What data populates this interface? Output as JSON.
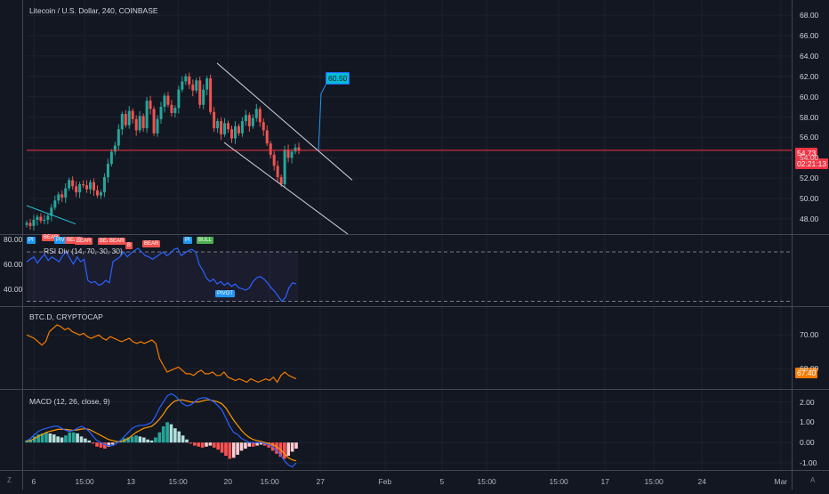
{
  "colors": {
    "background": "#131722",
    "grid": "#1e2230",
    "up": "#26a69a",
    "down": "#ef5350",
    "price_line": "#f23645",
    "rsi": "#2962ff",
    "btcd": "#f57c00",
    "macd": "#2962ff",
    "signal": "#ff9800",
    "channel": "#d1d4dc",
    "target": "#2196f3"
  },
  "main": {
    "legend": "Litecoin / U.S. Dollar, 240, COINBASE",
    "price_tag": "54.73",
    "countdown_tag": "02:21:13",
    "target_label": "60.50",
    "y_ticks": [
      "68.00",
      "66.00",
      "64.00",
      "62.00",
      "60.00",
      "58.00",
      "56.00",
      "54.00",
      "52.00",
      "50.00",
      "48.00"
    ]
  },
  "rsi": {
    "legend": "RSI Div (14, 70, 30, 30)",
    "y_ticks": [
      "80.00",
      "60.00",
      "40.00"
    ],
    "overbought": 70,
    "oversold": 30,
    "badges": [
      {
        "text": "PI",
        "color": "#2196f3"
      },
      {
        "text": "BEAR",
        "color": "#ef5350"
      },
      {
        "text": "PIVO",
        "color": "#2196f3"
      },
      {
        "text": "BEAR",
        "color": "#ef5350"
      },
      {
        "text": "BEAR",
        "color": "#ef5350"
      },
      {
        "text": "BEAR",
        "color": "#ef5350"
      },
      {
        "text": "BEAR",
        "color": "#ef5350"
      },
      {
        "text": "B",
        "color": "#ef5350"
      },
      {
        "text": "BEAR",
        "color": "#ef5350"
      },
      {
        "text": "PI",
        "color": "#2196f3"
      },
      {
        "text": "BULL",
        "color": "#4caf50"
      },
      {
        "text": "PIVOT",
        "color": "#2196f3"
      }
    ]
  },
  "btcd": {
    "legend": "BTC.D, CRYPTOCAP",
    "y_ticks": [
      "70.00",
      "68.00"
    ],
    "value_tag": "67.40"
  },
  "macd": {
    "legend": "MACD (12, 26, close, 9)",
    "y_ticks": [
      "2.00",
      "1.00",
      "0.00",
      "-1.00"
    ]
  },
  "x_axis": {
    "ticks": [
      "6",
      "15:00",
      "13",
      "15:00",
      "20",
      "15:00",
      "27",
      "Feb",
      "5",
      "15:00",
      "15:00",
      "17",
      "15:00",
      "24",
      "Mar"
    ]
  },
  "corners": {
    "left": "Z",
    "right": "A"
  },
  "chart_data": [
    {
      "type": "candlestick",
      "title": "Litecoin / U.S. Dollar, 240, COINBASE",
      "ylim": [
        46.5,
        69.5
      ],
      "close": [
        47.6,
        47.3,
        47.9,
        48.2,
        47.8,
        47.9,
        48.3,
        49.1,
        49.8,
        50.4,
        50.1,
        51.0,
        51.8,
        51.2,
        50.6,
        51.4,
        51.3,
        50.9,
        51.6,
        50.8,
        50.3,
        50.6,
        52.1,
        53.4,
        54.6,
        55.2,
        56.8,
        58.3,
        57.2,
        58.6,
        57.8,
        56.7,
        58.1,
        56.9,
        59.6,
        58.8,
        56.4,
        57.8,
        59.0,
        60.1,
        59.2,
        58.4,
        58.9,
        60.7,
        61.5,
        62.0,
        61.2,
        60.6,
        61.6,
        59.2,
        60.7,
        61.8,
        58.5,
        56.9,
        57.6,
        56.3,
        57.4,
        56.8,
        55.9,
        57.1,
        56.4,
        57.6,
        58.2,
        57.1,
        57.9,
        58.8,
        57.5,
        56.7,
        55.4,
        54.3,
        53.2,
        52.1,
        51.4,
        54.8,
        54.0,
        54.6,
        55.0,
        54.7
      ],
      "last": 54.73,
      "horizontal_line": 54.73,
      "target": 60.5
    },
    {
      "type": "line",
      "title": "RSI Div (14, 70, 30, 30)",
      "ylim": [
        26,
        83
      ],
      "levels": [
        70,
        30
      ],
      "values": [
        62,
        64,
        66,
        61,
        65,
        68,
        63,
        66,
        64,
        62,
        67,
        70,
        65,
        60,
        66,
        62,
        64,
        47,
        45,
        46,
        43,
        44,
        47,
        45,
        62,
        64,
        66,
        70,
        66,
        69,
        71,
        73,
        70,
        67,
        66,
        64,
        66,
        68,
        70,
        67,
        69,
        72,
        73,
        67,
        69,
        71,
        72,
        70,
        60,
        55,
        49,
        46,
        48,
        44,
        46,
        43,
        45,
        42,
        44,
        41,
        40,
        39,
        41,
        46,
        49,
        50,
        48,
        45,
        41,
        38,
        34,
        30,
        33,
        41,
        45,
        44
      ]
    },
    {
      "type": "line",
      "title": "BTC.D, CRYPTOCAP",
      "ylim": [
        66.8,
        71.6
      ],
      "values": [
        70.0,
        69.9,
        69.8,
        69.6,
        69.4,
        69.6,
        70.2,
        70.4,
        70.6,
        70.5,
        70.3,
        70.4,
        70.2,
        70.1,
        70.0,
        70.1,
        69.9,
        69.8,
        69.9,
        70.0,
        69.8,
        69.7,
        69.9,
        69.8,
        69.7,
        69.6,
        69.7,
        69.8,
        69.6,
        69.5,
        69.6,
        69.5,
        69.6,
        69.7,
        69.5,
        68.6,
        68.2,
        67.8,
        67.9,
        68.0,
        68.1,
        67.9,
        67.7,
        67.7,
        67.6,
        67.8,
        67.9,
        67.7,
        67.7,
        67.8,
        67.6,
        67.6,
        67.8,
        67.5,
        67.4,
        67.3,
        67.4,
        67.3,
        67.2,
        67.4,
        67.3,
        67.2,
        67.3,
        67.4,
        67.3,
        67.5,
        67.2,
        67.6,
        67.8,
        67.6,
        67.5,
        67.4
      ]
    },
    {
      "type": "bar+line",
      "title": "MACD (12, 26, close, 9)",
      "ylim": [
        -1.35,
        2.55
      ],
      "histogram": [
        0.1,
        0.15,
        0.3,
        0.4,
        0.45,
        0.5,
        0.45,
        0.4,
        0.3,
        0.25,
        0.35,
        0.5,
        0.5,
        0.45,
        0.3,
        0.2,
        0.1,
        -0.05,
        -0.2,
        -0.25,
        -0.3,
        -0.2,
        -0.1,
        0.05,
        0.1,
        0.2,
        0.25,
        0.3,
        0.35,
        0.3,
        0.25,
        0.15,
        0.1,
        0.25,
        0.5,
        0.8,
        1.0,
        0.9,
        0.7,
        0.55,
        0.35,
        0.15,
        -0.05,
        -0.15,
        -0.2,
        -0.25,
        -0.2,
        -0.15,
        -0.25,
        -0.35,
        -0.5,
        -0.65,
        -0.8,
        -0.75,
        -0.6,
        -0.4,
        -0.3,
        -0.2,
        -0.2,
        -0.15,
        -0.1,
        -0.15,
        -0.25,
        -0.4,
        -0.55,
        -0.7,
        -0.8,
        -0.65,
        -0.45,
        -0.3
      ],
      "macd": [
        0.1,
        0.2,
        0.4,
        0.55,
        0.65,
        0.7,
        0.75,
        0.8,
        0.8,
        0.7,
        0.6,
        0.55,
        0.6,
        0.7,
        0.8,
        0.7,
        0.55,
        0.3,
        0.1,
        0.0,
        -0.1,
        -0.15,
        -0.15,
        -0.05,
        0.1,
        0.3,
        0.5,
        0.7,
        0.8,
        0.85,
        0.85,
        0.9,
        1.0,
        1.3,
        1.7,
        2.0,
        2.3,
        2.4,
        2.3,
        2.1,
        1.9,
        1.8,
        1.85,
        2.0,
        2.15,
        2.2,
        2.2,
        2.1,
        2.0,
        1.8,
        1.6,
        1.2,
        0.8,
        0.5,
        0.4,
        0.2,
        0.1,
        0.0,
        0.0,
        0.0,
        0.0,
        -0.05,
        -0.1,
        -0.2,
        -0.4,
        -0.6,
        -0.9,
        -1.1,
        -1.2,
        -1.0
      ],
      "signal": [
        0.05,
        0.1,
        0.2,
        0.3,
        0.4,
        0.5,
        0.55,
        0.6,
        0.65,
        0.65,
        0.65,
        0.62,
        0.6,
        0.62,
        0.66,
        0.68,
        0.65,
        0.55,
        0.45,
        0.35,
        0.25,
        0.15,
        0.1,
        0.05,
        0.05,
        0.1,
        0.2,
        0.35,
        0.5,
        0.6,
        0.7,
        0.75,
        0.8,
        0.95,
        1.15,
        1.4,
        1.7,
        1.9,
        2.05,
        2.1,
        2.1,
        2.05,
        2.0,
        2.0,
        2.0,
        2.05,
        2.1,
        2.1,
        2.05,
        2.0,
        1.9,
        1.7,
        1.4,
        1.1,
        0.85,
        0.6,
        0.4,
        0.25,
        0.15,
        0.1,
        0.05,
        0.0,
        -0.05,
        -0.1,
        -0.2,
        -0.35,
        -0.55,
        -0.75,
        -0.85,
        -0.9
      ]
    }
  ]
}
